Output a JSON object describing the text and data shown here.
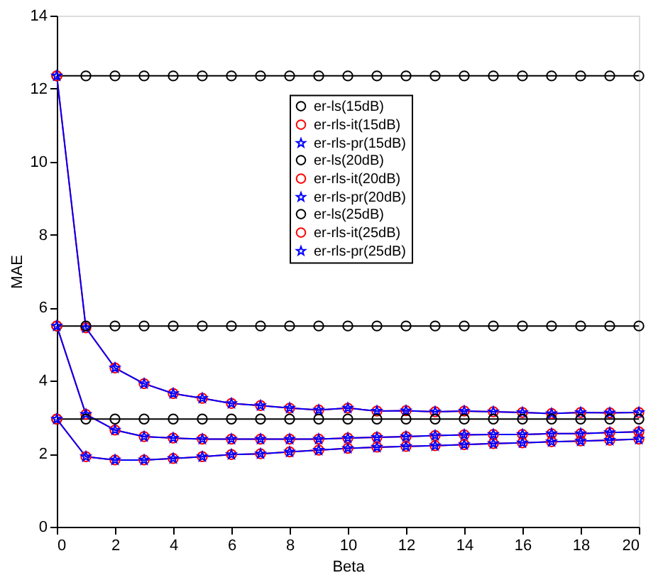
{
  "chart_data": {
    "type": "line",
    "xlabel": "Beta",
    "ylabel": "MAE",
    "x": [
      0,
      1,
      2,
      3,
      4,
      5,
      6,
      7,
      8,
      9,
      10,
      11,
      12,
      13,
      14,
      15,
      16,
      17,
      18,
      19,
      20
    ],
    "xlim": [
      0,
      20
    ],
    "xticks": [
      0,
      2,
      4,
      6,
      8,
      10,
      12,
      14,
      16,
      18,
      20
    ],
    "ylim": [
      0,
      14
    ],
    "yticks": [
      0,
      2,
      4,
      6,
      8,
      10,
      12,
      14
    ],
    "grid": false,
    "legend": "top",
    "line_style": "solid",
    "series": [
      {
        "name": "er-ls(15dB)",
        "color": "#000000",
        "marker": "circle",
        "values": [
          12.35,
          12.35,
          12.35,
          12.35,
          12.35,
          12.35,
          12.35,
          12.35,
          12.35,
          12.35,
          12.35,
          12.35,
          12.35,
          12.35,
          12.35,
          12.35,
          12.35,
          12.35,
          12.35,
          12.35,
          12.35
        ]
      },
      {
        "name": "er-rls-it(15dB)",
        "color": "#ff0000",
        "marker": "circle",
        "values": [
          12.35,
          5.45,
          4.35,
          3.92,
          3.65,
          3.52,
          3.38,
          3.32,
          3.25,
          3.2,
          3.25,
          3.17,
          3.18,
          3.15,
          3.17,
          3.15,
          3.13,
          3.1,
          3.13,
          3.12,
          3.13
        ]
      },
      {
        "name": "er-rls-pr(15dB)",
        "color": "#0000ff",
        "marker": "star",
        "values": [
          12.35,
          5.45,
          4.35,
          3.92,
          3.65,
          3.52,
          3.38,
          3.32,
          3.25,
          3.2,
          3.25,
          3.17,
          3.18,
          3.15,
          3.17,
          3.15,
          3.13,
          3.1,
          3.13,
          3.12,
          3.13
        ]
      },
      {
        "name": "er-ls(20dB)",
        "color": "#000000",
        "marker": "circle",
        "values": [
          5.5,
          5.5,
          5.5,
          5.5,
          5.5,
          5.5,
          5.5,
          5.5,
          5.5,
          5.5,
          5.5,
          5.5,
          5.5,
          5.5,
          5.5,
          5.5,
          5.5,
          5.5,
          5.5,
          5.5,
          5.5
        ]
      },
      {
        "name": "er-rls-it(20dB)",
        "color": "#ff0000",
        "marker": "circle",
        "values": [
          5.5,
          3.08,
          2.65,
          2.47,
          2.43,
          2.4,
          2.4,
          2.4,
          2.4,
          2.4,
          2.43,
          2.45,
          2.47,
          2.5,
          2.52,
          2.53,
          2.53,
          2.55,
          2.55,
          2.58,
          2.6
        ]
      },
      {
        "name": "er-rls-pr(20dB)",
        "color": "#0000ff",
        "marker": "star",
        "values": [
          5.5,
          3.08,
          2.65,
          2.47,
          2.43,
          2.4,
          2.4,
          2.4,
          2.4,
          2.4,
          2.43,
          2.45,
          2.47,
          2.5,
          2.52,
          2.53,
          2.53,
          2.55,
          2.55,
          2.58,
          2.6
        ]
      },
      {
        "name": "er-ls(25dB)",
        "color": "#000000",
        "marker": "circle",
        "values": [
          2.95,
          2.95,
          2.95,
          2.95,
          2.95,
          2.95,
          2.95,
          2.95,
          2.95,
          2.95,
          2.95,
          2.95,
          2.95,
          2.95,
          2.95,
          2.95,
          2.95,
          2.95,
          2.95,
          2.95,
          2.95
        ]
      },
      {
        "name": "er-rls-it(25dB)",
        "color": "#ff0000",
        "marker": "circle",
        "values": [
          2.95,
          1.92,
          1.83,
          1.83,
          1.87,
          1.92,
          1.98,
          2.0,
          2.05,
          2.1,
          2.15,
          2.18,
          2.2,
          2.22,
          2.25,
          2.28,
          2.3,
          2.33,
          2.35,
          2.37,
          2.4
        ]
      },
      {
        "name": "er-rls-pr(25dB)",
        "color": "#0000ff",
        "marker": "star",
        "values": [
          2.95,
          1.92,
          1.83,
          1.83,
          1.87,
          1.92,
          1.98,
          2.0,
          2.05,
          2.1,
          2.15,
          2.18,
          2.2,
          2.22,
          2.25,
          2.28,
          2.3,
          2.33,
          2.35,
          2.37,
          2.4
        ]
      }
    ]
  }
}
